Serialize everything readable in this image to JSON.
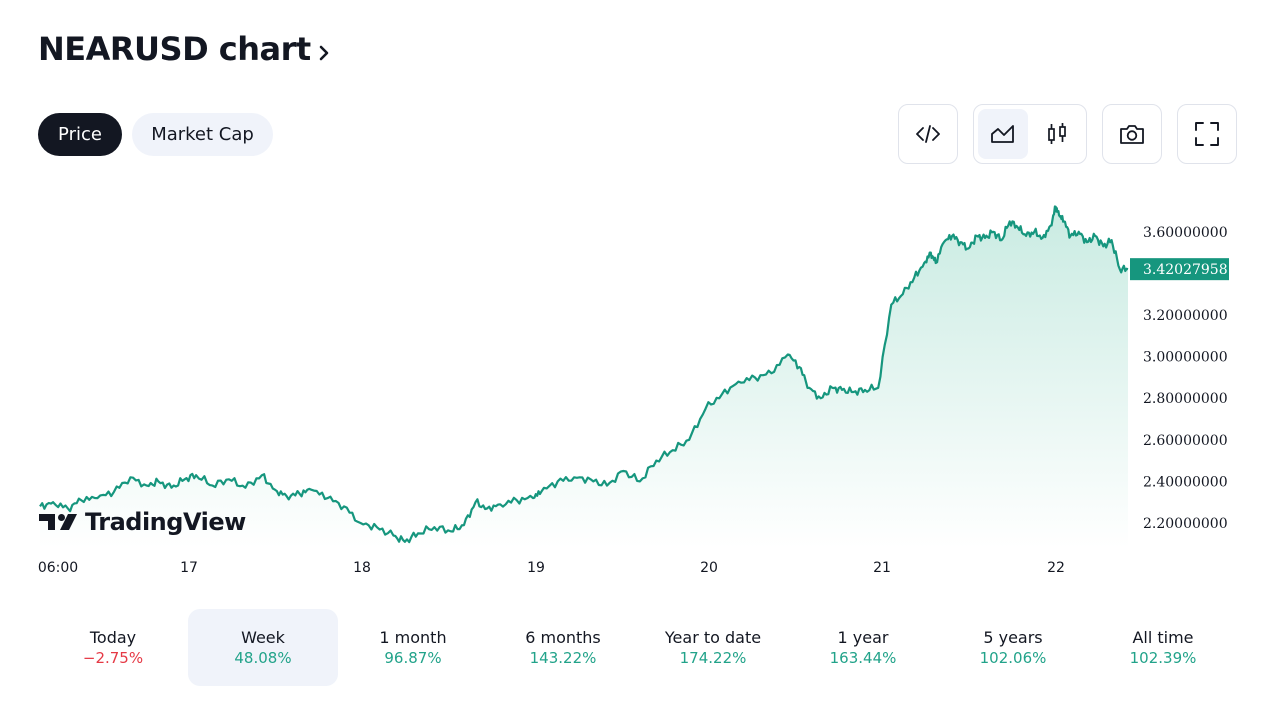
{
  "header": {
    "title": "NEARUSD chart"
  },
  "tabs": [
    {
      "label": "Price",
      "active": true
    },
    {
      "label": "Market Cap",
      "active": false
    }
  ],
  "toolbar": {
    "embed_icon": "code-icon",
    "line_icon": "area-chart-icon",
    "candle_icon": "candlestick-icon",
    "camera_icon": "camera-icon",
    "fullscreen_icon": "fullscreen-icon",
    "active_chart_style": "area"
  },
  "logo": {
    "text": "TradingView"
  },
  "colors": {
    "line": "#16967e",
    "area_top": "#c9ebe2",
    "area_bottom": "#ffffff",
    "price_label_bg": "#16967e",
    "positive": "#22a38a",
    "negative": "#e53945"
  },
  "chart_data": {
    "type": "area",
    "x_tick_labels": [
      "06:00",
      "17",
      "18",
      "19",
      "20",
      "21",
      "22"
    ],
    "y_tick_labels": [
      "3.60000000",
      "3.20000000",
      "3.00000000",
      "2.80000000",
      "2.60000000",
      "2.40000000",
      "2.20000000"
    ],
    "y_tick_values": [
      3.6,
      3.2,
      3.0,
      2.8,
      2.6,
      2.4,
      2.2
    ],
    "current_price_label": "3.42027958",
    "current_price": 3.42027958,
    "ylim": [
      2.08,
      3.82
    ],
    "x_range_days": [
      0,
      6.62
    ],
    "series": [
      {
        "x": [
          0,
          0.08,
          0.17,
          0.25,
          0.35,
          0.45,
          0.55,
          0.65,
          0.72,
          0.8,
          0.88,
          0.95,
          1.05,
          1.15,
          1.25,
          1.35,
          1.43,
          1.5,
          1.58,
          1.65,
          1.75,
          1.85,
          1.95,
          2.05,
          2.15,
          2.22,
          2.3,
          2.4,
          2.5,
          2.58,
          2.65,
          2.72,
          2.8,
          2.9,
          3.0,
          3.05,
          3.15,
          3.25,
          3.35,
          3.45,
          3.55,
          3.65,
          3.75,
          3.85,
          3.95,
          4.05,
          4.15,
          4.25,
          4.35,
          4.45,
          4.55,
          4.62,
          4.68,
          4.75,
          4.82,
          4.88,
          4.95,
          5.02,
          5.1,
          5.18,
          5.25,
          5.32,
          5.38,
          5.42,
          5.45,
          5.5,
          5.55,
          5.6,
          5.65,
          5.7,
          5.75,
          5.8,
          5.85,
          5.9,
          5.95,
          6.0,
          6.05,
          6.1,
          6.15,
          6.18,
          6.2,
          6.23,
          6.27,
          6.32,
          6.37,
          6.42,
          6.47,
          6.52,
          6.57,
          6.62
        ],
        "y": [
          2.28,
          2.3,
          2.27,
          2.31,
          2.32,
          2.35,
          2.42,
          2.38,
          2.4,
          2.37,
          2.41,
          2.43,
          2.38,
          2.41,
          2.37,
          2.43,
          2.36,
          2.33,
          2.34,
          2.36,
          2.32,
          2.28,
          2.2,
          2.18,
          2.14,
          2.11,
          2.15,
          2.18,
          2.16,
          2.19,
          2.3,
          2.27,
          2.29,
          2.31,
          2.32,
          2.35,
          2.4,
          2.42,
          2.41,
          2.38,
          2.45,
          2.4,
          2.5,
          2.55,
          2.6,
          2.75,
          2.82,
          2.88,
          2.9,
          2.92,
          3.01,
          2.95,
          2.85,
          2.8,
          2.85,
          2.84,
          2.83,
          2.84,
          2.85,
          3.25,
          3.3,
          3.38,
          3.45,
          3.5,
          3.45,
          3.55,
          3.58,
          3.55,
          3.52,
          3.58,
          3.57,
          3.6,
          3.56,
          3.65,
          3.62,
          3.58,
          3.6,
          3.57,
          3.63,
          3.72,
          3.68,
          3.65,
          3.58,
          3.6,
          3.55,
          3.58,
          3.53,
          3.56,
          3.42,
          3.42
        ]
      }
    ]
  },
  "periods": [
    {
      "label": "Today",
      "value": "−2.75%",
      "sign": "neg",
      "active": false
    },
    {
      "label": "Week",
      "value": "48.08%",
      "sign": "pos",
      "active": true
    },
    {
      "label": "1 month",
      "value": "96.87%",
      "sign": "pos",
      "active": false
    },
    {
      "label": "6 months",
      "value": "143.22%",
      "sign": "pos",
      "active": false
    },
    {
      "label": "Year to date",
      "value": "174.22%",
      "sign": "pos",
      "active": false
    },
    {
      "label": "1 year",
      "value": "163.44%",
      "sign": "pos",
      "active": false
    },
    {
      "label": "5 years",
      "value": "102.06%",
      "sign": "pos",
      "active": false
    },
    {
      "label": "All time",
      "value": "102.39%",
      "sign": "pos",
      "active": false
    }
  ]
}
